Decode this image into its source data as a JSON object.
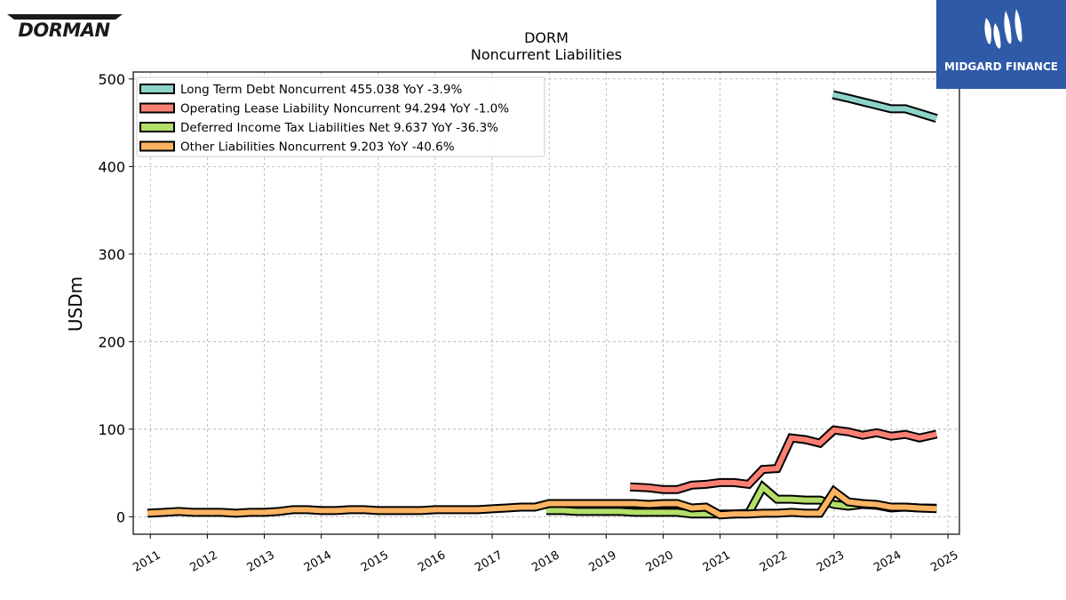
{
  "brand": {
    "left_logo_text": "DORMAN",
    "right_logo_text": "MIDGARD FINANCE"
  },
  "chart_data": {
    "type": "line",
    "title": "DORM",
    "subtitle": "Noncurrent  Liabilities",
    "ylabel": "USDm",
    "xlabel": "",
    "xlim": [
      2010.7,
      2025.2
    ],
    "ylim": [
      -20,
      508
    ],
    "xticks": [
      2011,
      2012,
      2013,
      2014,
      2015,
      2016,
      2017,
      2018,
      2019,
      2020,
      2021,
      2022,
      2023,
      2024,
      2025
    ],
    "yticks": [
      0,
      100,
      200,
      300,
      400,
      500
    ],
    "grid": true,
    "legend_position": "top-left",
    "series": [
      {
        "name": "Long Term Debt Noncurrent",
        "legend": "Long Term Debt Noncurrent  455.038 YoY -3.9%",
        "color": "#8dd3c7",
        "points": [
          [
            2022.98,
            482
          ],
          [
            2023.25,
            478
          ],
          [
            2023.5,
            474
          ],
          [
            2023.75,
            470
          ],
          [
            2024.0,
            466
          ],
          [
            2024.25,
            466
          ],
          [
            2024.5,
            461
          ],
          [
            2024.8,
            455.038
          ]
        ]
      },
      {
        "name": "Operating Lease Liability Noncurrent",
        "legend": "Operating Lease Liability Noncurrent  94.294 YoY -1.0%",
        "color": "#fb8072",
        "points": [
          [
            2019.42,
            34
          ],
          [
            2019.75,
            33
          ],
          [
            2020.0,
            31
          ],
          [
            2020.25,
            31
          ],
          [
            2020.5,
            36
          ],
          [
            2020.75,
            37
          ],
          [
            2021.0,
            39
          ],
          [
            2021.25,
            39
          ],
          [
            2021.5,
            37
          ],
          [
            2021.75,
            54
          ],
          [
            2022.0,
            55
          ],
          [
            2022.25,
            90
          ],
          [
            2022.5,
            88
          ],
          [
            2022.75,
            84
          ],
          [
            2023.0,
            99
          ],
          [
            2023.25,
            97
          ],
          [
            2023.5,
            93
          ],
          [
            2023.75,
            96
          ],
          [
            2024.0,
            92
          ],
          [
            2024.25,
            94
          ],
          [
            2024.5,
            90
          ],
          [
            2024.8,
            94.294
          ]
        ]
      },
      {
        "name": "Deferred Income Tax Liabilities Net",
        "legend": "Deferred Income Tax Liabilities Net  9.637 YoY -36.3%",
        "color": "#b3de69",
        "points": [
          [
            2017.95,
            7
          ],
          [
            2018.25,
            7
          ],
          [
            2018.5,
            6
          ],
          [
            2018.75,
            6
          ],
          [
            2019.0,
            6
          ],
          [
            2019.25,
            6
          ],
          [
            2019.5,
            5
          ],
          [
            2019.75,
            5
          ],
          [
            2020.0,
            5
          ],
          [
            2020.25,
            5
          ],
          [
            2020.5,
            3
          ],
          [
            2020.75,
            3
          ],
          [
            2021.0,
            3
          ],
          [
            2021.25,
            3
          ],
          [
            2021.5,
            4
          ],
          [
            2021.75,
            34
          ],
          [
            2022.0,
            20
          ],
          [
            2022.25,
            20
          ],
          [
            2022.5,
            19
          ],
          [
            2022.75,
            19
          ],
          [
            2023.0,
            14
          ],
          [
            2023.25,
            12
          ],
          [
            2023.5,
            14
          ],
          [
            2023.75,
            13
          ],
          [
            2024.0,
            10
          ],
          [
            2024.25,
            11
          ],
          [
            2024.5,
            10
          ],
          [
            2024.8,
            9.637
          ]
        ]
      },
      {
        "name": "Other Liabilities Noncurrent",
        "legend": "Other Liabilities Noncurrent  9.203 YoY -40.6%",
        "color": "#fdb462",
        "points": [
          [
            2010.95,
            4
          ],
          [
            2011.25,
            5
          ],
          [
            2011.5,
            6
          ],
          [
            2011.75,
            5
          ],
          [
            2012.0,
            5
          ],
          [
            2012.25,
            5
          ],
          [
            2012.5,
            4
          ],
          [
            2012.75,
            5
          ],
          [
            2013.0,
            5
          ],
          [
            2013.25,
            6
          ],
          [
            2013.5,
            8
          ],
          [
            2013.75,
            8
          ],
          [
            2014.0,
            7
          ],
          [
            2014.25,
            7
          ],
          [
            2014.5,
            8
          ],
          [
            2014.75,
            8
          ],
          [
            2015.0,
            7
          ],
          [
            2015.25,
            7
          ],
          [
            2015.5,
            7
          ],
          [
            2015.75,
            7
          ],
          [
            2016.0,
            8
          ],
          [
            2016.25,
            8
          ],
          [
            2016.5,
            8
          ],
          [
            2016.75,
            8
          ],
          [
            2017.0,
            9
          ],
          [
            2017.25,
            10
          ],
          [
            2017.5,
            11
          ],
          [
            2017.75,
            11
          ],
          [
            2018.0,
            15
          ],
          [
            2018.25,
            15
          ],
          [
            2018.5,
            15
          ],
          [
            2018.75,
            15
          ],
          [
            2019.0,
            15
          ],
          [
            2019.25,
            15
          ],
          [
            2019.5,
            15
          ],
          [
            2019.75,
            14
          ],
          [
            2020.0,
            15
          ],
          [
            2020.25,
            15
          ],
          [
            2020.5,
            10
          ],
          [
            2020.75,
            11
          ],
          [
            2021.0,
            2
          ],
          [
            2021.25,
            3
          ],
          [
            2021.5,
            3
          ],
          [
            2021.75,
            4
          ],
          [
            2022.0,
            4
          ],
          [
            2022.25,
            5
          ],
          [
            2022.5,
            4
          ],
          [
            2022.75,
            4
          ],
          [
            2023.0,
            29
          ],
          [
            2023.25,
            17
          ],
          [
            2023.5,
            15
          ],
          [
            2023.75,
            14
          ],
          [
            2024.0,
            11
          ],
          [
            2024.25,
            11
          ],
          [
            2024.5,
            10
          ],
          [
            2024.8,
            9.203
          ]
        ]
      }
    ]
  }
}
